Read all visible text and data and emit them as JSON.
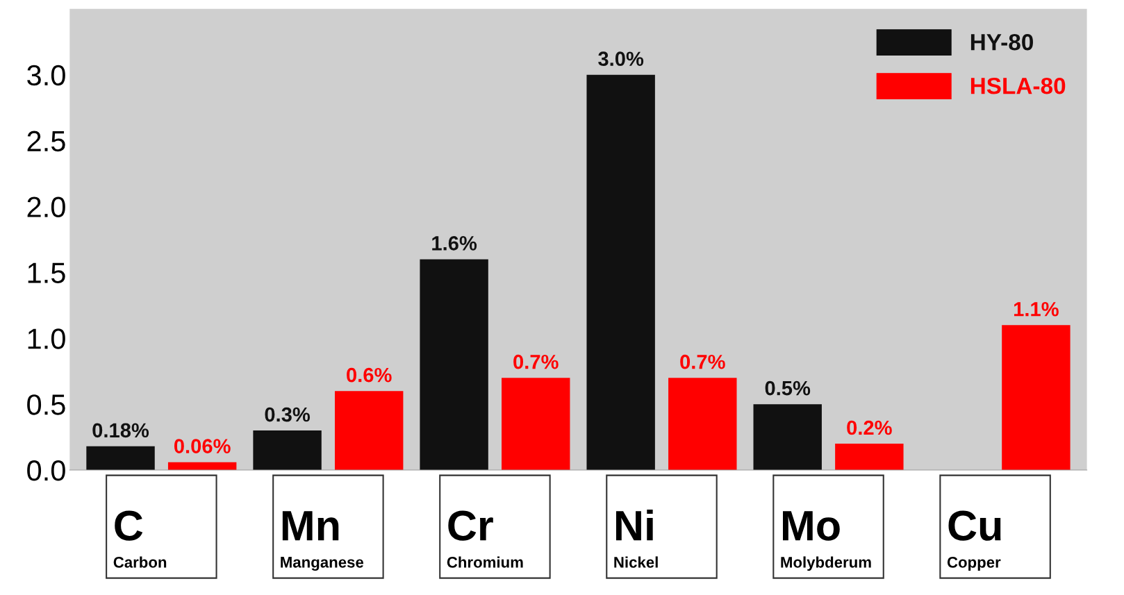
{
  "chart_data": {
    "type": "bar",
    "categories": [
      "C\nCarbon",
      "Mn\nManganese",
      "Cr\nChromium",
      "Ni\nNickel",
      "Mo\nMolybderum",
      "Cu\nCopper"
    ],
    "series": [
      {
        "name": "HY-80",
        "color": "#111111",
        "values": [
          0.18,
          0.3,
          1.6,
          3.0,
          0.5,
          null
        ],
        "value_labels": [
          "0.18%",
          "0.3%",
          "1.6%",
          "3.0%",
          "0.5%",
          null
        ]
      },
      {
        "name": "HSLA-80",
        "color": "#ff0000",
        "values": [
          0.06,
          0.6,
          0.7,
          0.7,
          0.2,
          1.1
        ],
        "value_labels": [
          "0.06%",
          "0.6%",
          "0.7%",
          "0.7%",
          "0.2%",
          "1.1%"
        ]
      }
    ],
    "ylim": [
      0,
      3.5
    ],
    "yticks": [
      {
        "value": 0,
        "label": "0.0"
      },
      {
        "value": 0.5,
        "label": "0.5"
      },
      {
        "value": 1,
        "label": "1.0"
      },
      {
        "value": 1.5,
        "label": "1.5"
      },
      {
        "value": 2,
        "label": "2.0"
      },
      {
        "value": 2.5,
        "label": "2.5"
      },
      {
        "value": 3,
        "label": "3.0"
      }
    ],
    "grid": false,
    "legend": "top right"
  }
}
